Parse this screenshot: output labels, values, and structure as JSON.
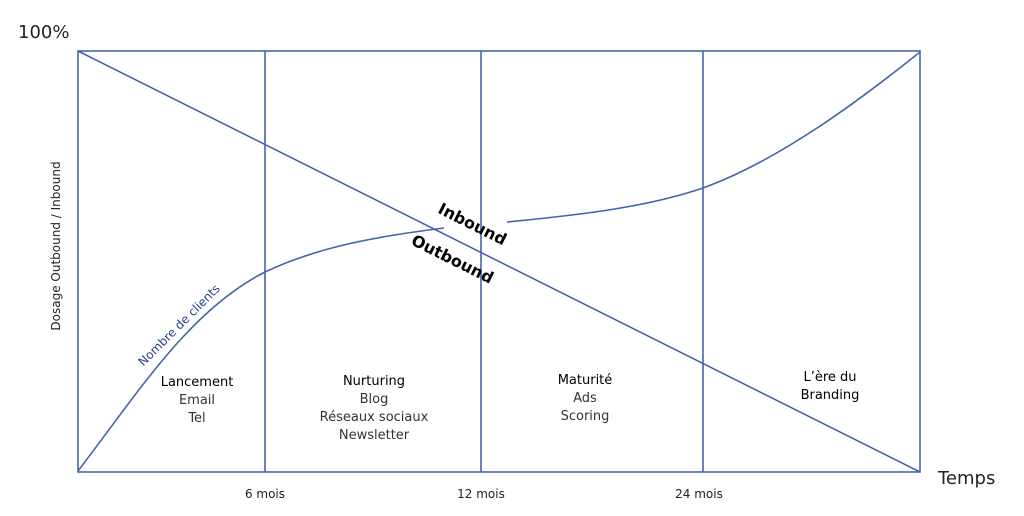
{
  "y_top_label": "100%",
  "x_axis_label": "Temps",
  "y_axis_label": "Dosage Outbound / Inbound",
  "ticks": [
    "6 mois",
    "12 mois",
    "24 mois"
  ],
  "phases": [
    {
      "title": "Lancement",
      "items": [
        "Email",
        "Tel"
      ]
    },
    {
      "title": "Nurturing",
      "items": [
        "Blog",
        "Réseaux sociaux",
        "Newsletter"
      ]
    },
    {
      "title": "Maturité",
      "items": [
        "Ads",
        "Scoring"
      ]
    },
    {
      "title": "L’ère du",
      "items": [
        "Branding"
      ]
    }
  ],
  "inbound_label": "Inbound",
  "outbound_label": "Outbound",
  "curve_label": "Nombre de clients",
  "colors": {
    "line": "#4563ad",
    "frame": "#4563ad",
    "text": "#222222"
  }
}
